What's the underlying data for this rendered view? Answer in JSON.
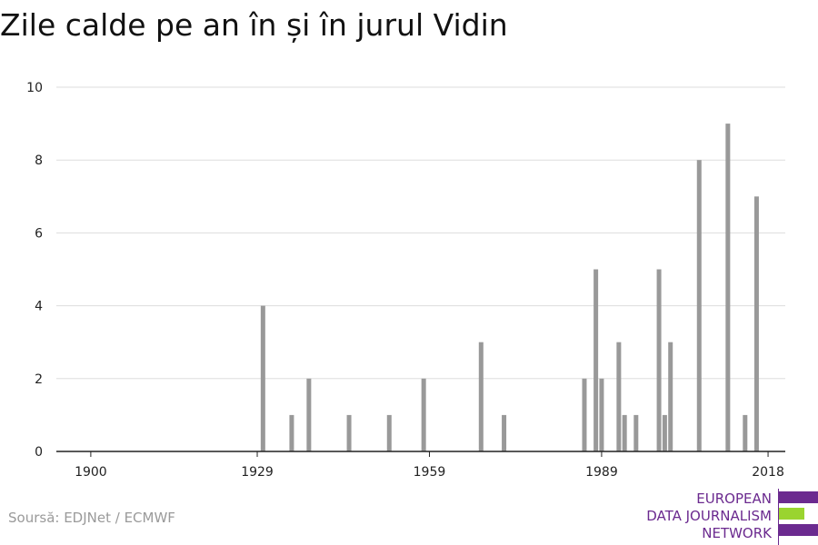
{
  "title": "Zile calde pe an în și în jurul Vidin",
  "source": "Soursă: EDJNet / ECMWF",
  "logo": {
    "lines": [
      "EUROPEAN",
      "DATA JOURNALISM",
      "NETWORK"
    ],
    "text_color": "#6b2a8f",
    "purple": "#6b2a8f",
    "green": "#9ad42f"
  },
  "chart_data": {
    "type": "bar",
    "title": "Zile calde pe an în și în jurul Vidin",
    "xlabel": "",
    "ylabel": "",
    "xlim": [
      1894,
      2021
    ],
    "ylim": [
      0,
      10
    ],
    "x_ticks": [
      1900,
      1929,
      1959,
      1989,
      2018
    ],
    "y_ticks": [
      0,
      2,
      4,
      6,
      8,
      10
    ],
    "grid": true,
    "bar_color": "#999999",
    "x": [
      1930,
      1935,
      1938,
      1945,
      1952,
      1958,
      1968,
      1972,
      1986,
      1988,
      1989,
      1992,
      1993,
      1995,
      1999,
      2000,
      2001,
      2006,
      2011,
      2014,
      2016
    ],
    "values": [
      4,
      1,
      2,
      1,
      1,
      2,
      3,
      1,
      2,
      5,
      2,
      3,
      1,
      1,
      5,
      1,
      3,
      8,
      9,
      1,
      7
    ]
  }
}
